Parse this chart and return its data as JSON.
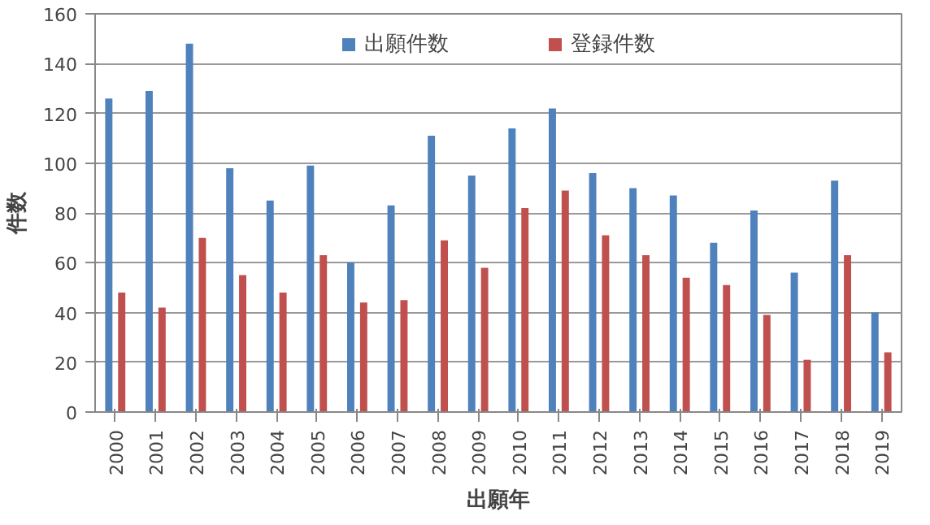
{
  "chart_data": {
    "type": "bar",
    "xlabel": "出願年",
    "ylabel": "件数",
    "categories": [
      "2000",
      "2001",
      "2002",
      "2003",
      "2004",
      "2005",
      "2006",
      "2007",
      "2008",
      "2009",
      "2010",
      "2011",
      "2012",
      "2013",
      "2014",
      "2015",
      "2016",
      "2017",
      "2018",
      "2019"
    ],
    "series": [
      {
        "name": "出願件数",
        "color": "#4f81bd",
        "values": [
          126,
          129,
          148,
          98,
          85,
          99,
          60,
          83,
          111,
          95,
          114,
          122,
          96,
          90,
          87,
          68,
          81,
          56,
          93,
          40
        ]
      },
      {
        "name": "登録件数",
        "color": "#c0504d",
        "values": [
          48,
          42,
          70,
          55,
          48,
          63,
          44,
          45,
          69,
          58,
          82,
          89,
          71,
          63,
          54,
          51,
          39,
          21,
          63,
          24
        ]
      }
    ],
    "ylim": [
      0,
      160
    ],
    "yticks": [
      0,
      20,
      40,
      60,
      80,
      100,
      120,
      140,
      160
    ],
    "grid": "y",
    "legend": "top"
  }
}
